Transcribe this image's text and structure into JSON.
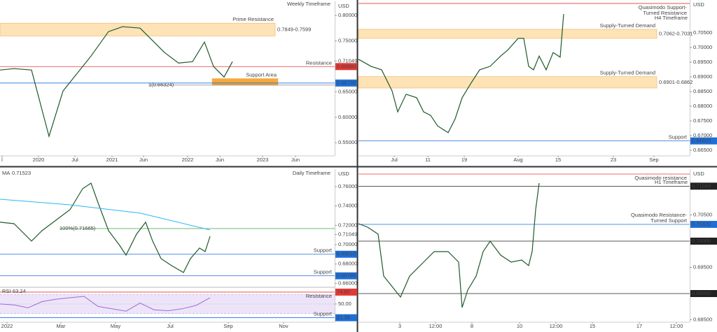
{
  "chart_data": [
    {
      "type": "line",
      "title": "Weekly Timeframe",
      "unit": "USD",
      "xlim": [
        0,
        478
      ],
      "ylim": [
        0.531,
        0.825
      ],
      "xticks": [
        {
          "value": 3,
          "label": "l"
        },
        {
          "value": 55,
          "label": "2020"
        },
        {
          "value": 107,
          "label": "Jul"
        },
        {
          "value": 160,
          "label": "2021"
        },
        {
          "value": 205,
          "label": "Jun"
        },
        {
          "value": 268,
          "label": "2022"
        },
        {
          "value": 314,
          "label": "Jun"
        },
        {
          "value": 375,
          "label": "2023"
        },
        {
          "value": 422,
          "label": "Jun"
        }
      ],
      "yticks": [
        {
          "value": 0.55,
          "label": "0.55000"
        },
        {
          "value": 0.6,
          "label": "0.60000"
        },
        {
          "value": 0.65,
          "label": "0.65000"
        },
        {
          "value": 0.71049,
          "label": "0.71049"
        },
        {
          "value": 0.75,
          "label": "0.75000"
        },
        {
          "value": 0.8,
          "label": "0.80000"
        }
      ],
      "series": [
        {
          "color": "#1f5a2a",
          "x": [
            0,
            20,
            45,
            70,
            90,
            130,
            155,
            175,
            200,
            215,
            235,
            255,
            275,
            292,
            305,
            320,
            332
          ],
          "values": [
            0.6929,
            0.6956,
            0.6929,
            0.5624,
            0.6516,
            0.7203,
            0.7684,
            0.778,
            0.7753,
            0.7547,
            0.7272,
            0.7066,
            0.7093,
            0.7478,
            0.6997,
            0.6791,
            0.7093
          ]
        }
      ],
      "zones": [
        {
          "range": [
            0.7599,
            0.7849
          ],
          "label": "0.7849-0.7599",
          "text": "Prime Resistance",
          "color": "#fde3b6",
          "text_color": "#e53935"
        },
        {
          "range": [
            0.663,
            0.676
          ],
          "text": "Support Area",
          "color": "#f7a93b",
          "text_color": "#1e6fd9"
        }
      ],
      "levels": [
        {
          "value": 0.6996,
          "label": "0.69960",
          "text": "Resistance",
          "color": "#e53935"
        },
        {
          "value": 0.6673,
          "label": "0.66730",
          "color": "#1e6fd9"
        }
      ],
      "annotations": [
        {
          "text": "1(0.66324)",
          "value": 0.66324,
          "color": "#888888"
        }
      ]
    },
    {
      "type": "line",
      "title": "H4 Timeframe",
      "unit": "USD",
      "xlim": [
        0,
        473
      ],
      "ylim": [
        0.6643,
        0.7157
      ],
      "xticks": [
        {
          "value": 51,
          "label": "Jul"
        },
        {
          "value": 99,
          "label": "11"
        },
        {
          "value": 151,
          "label": "19"
        },
        {
          "value": 228,
          "label": "Aug"
        },
        {
          "value": 285,
          "label": "15"
        },
        {
          "value": 364,
          "label": "23"
        },
        {
          "value": 422,
          "label": "Sep"
        }
      ],
      "yticks": [
        {
          "value": 0.665,
          "label": "0.66500"
        },
        {
          "value": 0.67,
          "label": "0.67000"
        },
        {
          "value": 0.675,
          "label": "0.67500"
        },
        {
          "value": 0.68,
          "label": "0.68000"
        },
        {
          "value": 0.685,
          "label": "0.68500"
        },
        {
          "value": 0.69,
          "label": "0.69000"
        },
        {
          "value": 0.695,
          "label": "0.69500"
        },
        {
          "value": 0.7,
          "label": "0.70000"
        },
        {
          "value": 0.705,
          "label": "0.70500"
        }
      ],
      "series": [
        {
          "color": "#1f5a2a",
          "x": [
            0,
            18,
            33,
            48,
            56,
            68,
            83,
            93,
            103,
            113,
            128,
            138,
            148,
            160,
            173,
            188,
            203,
            213,
            228,
            236,
            243,
            250,
            258,
            268,
            278,
            288,
            293
          ],
          "values": [
            0.696,
            0.6936,
            0.6924,
            0.6852,
            0.6781,
            0.6841,
            0.6829,
            0.6781,
            0.6769,
            0.6733,
            0.671,
            0.6757,
            0.6829,
            0.6876,
            0.6924,
            0.6936,
            0.6971,
            0.6991,
            0.7031,
            0.7031,
            0.6936,
            0.6924,
            0.6971,
            0.6924,
            0.6983,
            0.6967,
            0.7114
          ]
        }
      ],
      "zones": [
        {
          "range": [
            0.7031,
            0.7062
          ],
          "label": "0.7062-0.7031",
          "text": "Supply-Turned Demand",
          "color": "#fde3b6",
          "text_color": "#1e6fd9"
        },
        {
          "range": [
            0.6862,
            0.6901
          ],
          "label": "0.6901-0.6862",
          "text": "Supply-Turned Demand",
          "color": "#fde3b6",
          "text_color": "#1e6fd9"
        }
      ],
      "levels": [
        {
          "value": 0.715,
          "text": [
            "Quasimodo Support-",
            "Turned Resistance"
          ],
          "color": "#e53935"
        },
        {
          "value": 0.6682,
          "label": "0.66820",
          "text": "Support",
          "color": "#1e6fd9"
        }
      ]
    },
    {
      "type": "line",
      "title": "Daily Timeframe",
      "unit": "USD",
      "xlim": [
        0,
        478
      ],
      "ylim": [
        0.6567,
        0.7766
      ],
      "xticks": [
        {
          "value": 10,
          "label": "2022"
        },
        {
          "value": 87,
          "label": "Mar"
        },
        {
          "value": 165,
          "label": "May"
        },
        {
          "value": 243,
          "label": "Jul"
        },
        {
          "value": 326,
          "label": "Sep"
        },
        {
          "value": 405,
          "label": "Nov"
        }
      ],
      "yticks": [
        {
          "value": 0.66,
          "label": "0.66000"
        },
        {
          "value": 0.68,
          "label": "0.68000"
        },
        {
          "value": 0.7,
          "label": "0.70000"
        },
        {
          "value": 0.71049,
          "label": "0.71049"
        },
        {
          "value": 0.72,
          "label": "0.72000"
        },
        {
          "value": 0.74,
          "label": "0.74000"
        },
        {
          "value": 0.76,
          "label": "0.76000"
        }
      ],
      "series": [
        {
          "color": "#1f5a2a",
          "x": [
            0,
            20,
            45,
            60,
            80,
            100,
            118,
            130,
            140,
            155,
            170,
            180,
            195,
            208,
            218,
            230,
            245,
            262,
            272,
            285,
            293,
            300
          ],
          "values": [
            0.7232,
            0.7217,
            0.7037,
            0.7145,
            0.7253,
            0.7362,
            0.7578,
            0.7636,
            0.7434,
            0.7145,
            0.7001,
            0.6892,
            0.7109,
            0.7232,
            0.7037,
            0.6856,
            0.6784,
            0.6712,
            0.6856,
            0.6965,
            0.6929,
            0.7087
          ]
        },
        {
          "name": "MA",
          "last": 0.71523,
          "color": "#29b6f6",
          "x": [
            0,
            100,
            200,
            300
          ],
          "values": [
            0.747,
            0.7412,
            0.7326,
            0.7152
          ]
        }
      ],
      "levels": [
        {
          "value": 0.6901,
          "label": "0.69010",
          "text": "Support",
          "color": "#1e6fd9"
        },
        {
          "value": 0.6678,
          "label": "0.66780",
          "text": "Support",
          "color": "#1e6fd9"
        }
      ],
      "annotations": [
        {
          "text": "100%(0.71665)",
          "value": 0.71665,
          "color": "#43a047"
        }
      ],
      "indicator": {
        "name": "RSI",
        "last": 63.24,
        "color": "#9c6ad6",
        "ylim": [
          12,
          82
        ],
        "band": [
          30,
          70
        ],
        "yticks": [
          {
            "value": 50,
            "label": "50.00"
          }
        ],
        "x": [
          0,
          20,
          40,
          60,
          80,
          100,
          120,
          140,
          160,
          180,
          200,
          220,
          240,
          260,
          280,
          300
        ],
        "values": [
          50,
          48,
          42,
          55,
          60,
          63,
          66,
          45,
          40,
          35,
          52,
          38,
          36,
          40,
          47,
          63.24
        ],
        "levels": [
          {
            "value": 74.8,
            "label": "74.80",
            "text": "Resistance",
            "color": "#e53935"
          },
          {
            "value": 21.38,
            "label": "21.38",
            "text": "Support",
            "color": "#1e6fd9"
          }
        ]
      }
    },
    {
      "type": "line",
      "title": "H1 Timeframe",
      "unit": "USD",
      "xlim": [
        0,
        473
      ],
      "ylim": [
        0.6844,
        0.71347
      ],
      "xticks": [
        {
          "value": 59,
          "label": "3"
        },
        {
          "value": 110,
          "label": "12:00"
        },
        {
          "value": 162,
          "label": "8"
        },
        {
          "value": 230,
          "label": "10"
        },
        {
          "value": 282,
          "label": "12:00"
        },
        {
          "value": 334,
          "label": "15"
        },
        {
          "value": 401,
          "label": "17"
        },
        {
          "value": 454,
          "label": "12:00"
        }
      ],
      "yticks": [
        {
          "value": 0.685,
          "label": "0.68500"
        },
        {
          "value": 0.695,
          "label": "0.69500"
        },
        {
          "value": 0.705,
          "label": "0.70500"
        }
      ],
      "series": [
        {
          "color": "#1f5a2a",
          "x": [
            0,
            13,
            28,
            36,
            48,
            60,
            73,
            88,
            108,
            128,
            143,
            148,
            156,
            168,
            178,
            188,
            203,
            218,
            233,
            243,
            248,
            253,
            258
          ],
          "values": [
            0.70333,
            0.70267,
            0.70133,
            0.69333,
            0.69133,
            0.68933,
            0.69333,
            0.69533,
            0.698,
            0.698,
            0.696,
            0.68733,
            0.69067,
            0.69333,
            0.698,
            0.7,
            0.69733,
            0.696,
            0.6964,
            0.69533,
            0.698,
            0.706,
            0.71107
          ]
        }
      ],
      "levels": [
        {
          "value": 0.7128,
          "text": "Quasimodo resistance",
          "color": "#e53935"
        },
        {
          "value": 0.71049,
          "label": "0.71049",
          "color": "#222222"
        },
        {
          "value": 0.7032,
          "label": "0.70320",
          "text": [
            "Quasimodo Resistance-",
            "Turned Support"
          ],
          "color": "#1e6fd9"
        },
        {
          "value": 0.7,
          "label": "0.70000",
          "color": "#222222"
        },
        {
          "value": 0.69,
          "label": "0.69000",
          "color": "#222222"
        }
      ]
    }
  ]
}
